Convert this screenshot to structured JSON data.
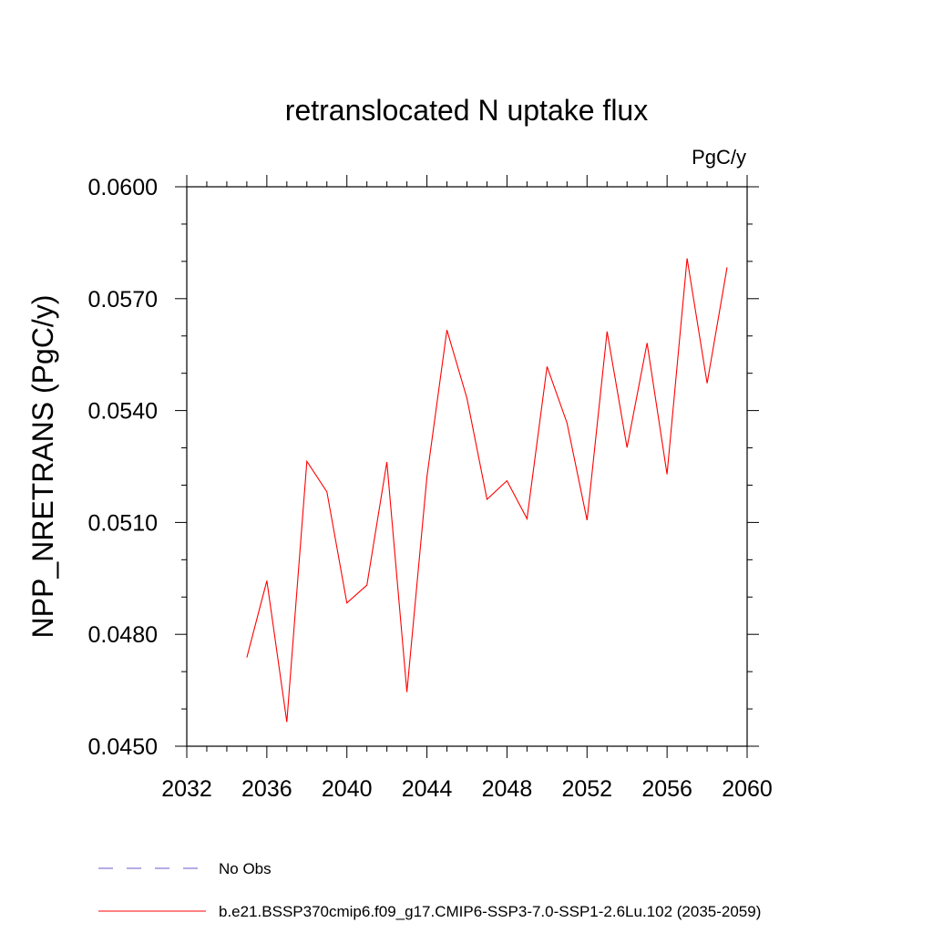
{
  "chart_data": {
    "type": "line",
    "title": "retranslocated N uptake flux",
    "units": "PgC/y",
    "ylabel": "NPP_NRETRANS  (PgC/y)",
    "xlabel": "",
    "xlim": [
      2032,
      2060
    ],
    "ylim": [
      0.045,
      0.06
    ],
    "x_ticks": [
      2032,
      2036,
      2040,
      2044,
      2048,
      2052,
      2056,
      2060
    ],
    "x_tick_labels": [
      "2032",
      "2036",
      "2040",
      "2044",
      "2048",
      "2052",
      "2056",
      "2060"
    ],
    "y_ticks": [
      0.045,
      0.048,
      0.051,
      0.054,
      0.057,
      0.06
    ],
    "y_tick_labels": [
      "0.0450",
      "0.0480",
      "0.0510",
      "0.0540",
      "0.0570",
      "0.0600"
    ],
    "grid": false,
    "legend_position": "bottom",
    "series": [
      {
        "name": "b.e21.BSSP370cmip6.f09_g17.CMIP6-SSP3-7.0-SSP1-2.6Lu.102 (2035-2059)",
        "color": "#ff0000",
        "style": "solid",
        "x": [
          2035,
          2036,
          2037,
          2038,
          2039,
          2040,
          2041,
          2042,
          2043,
          2044,
          2045,
          2046,
          2047,
          2048,
          2049,
          2050,
          2051,
          2052,
          2053,
          2054,
          2055,
          2056,
          2057,
          2058,
          2059
        ],
        "y": [
          0.04738,
          0.04944,
          0.04565,
          0.05264,
          0.05182,
          0.04884,
          0.04932,
          0.05262,
          0.04645,
          0.05223,
          0.05616,
          0.05433,
          0.05162,
          0.05212,
          0.0511,
          0.05518,
          0.05367,
          0.05106,
          0.05612,
          0.05301,
          0.05581,
          0.05229,
          0.05808,
          0.05473,
          0.05784
        ]
      }
    ],
    "legend": [
      {
        "label": "No Obs",
        "color": "#6a5acd",
        "style": "dashed"
      },
      {
        "label": "b.e21.BSSP370cmip6.f09_g17.CMIP6-SSP3-7.0-SSP1-2.6Lu.102 (2035-2059)",
        "color": "#ff0000",
        "style": "solid"
      }
    ]
  }
}
